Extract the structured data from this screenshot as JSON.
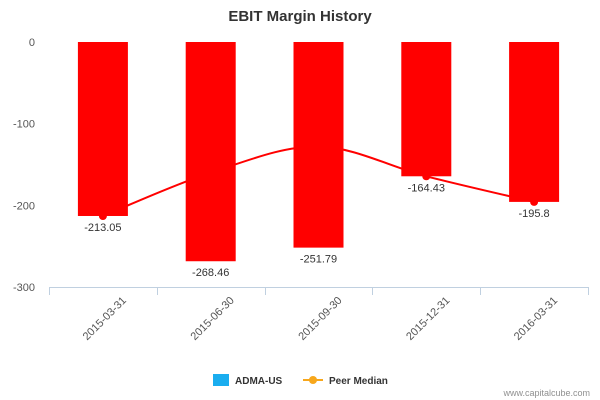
{
  "chart_data": {
    "type": "bar",
    "title": "EBIT Margin History",
    "categories": [
      "2015-03-31",
      "2015-06-30",
      "2015-09-30",
      "2015-12-31",
      "2016-03-31"
    ],
    "series": [
      {
        "name": "ADMA-US",
        "type": "bar",
        "values": [
          -213.05,
          -268.46,
          -251.79,
          -164.43,
          -195.8
        ],
        "color": "#ff0000",
        "legend_color": "#1aadef"
      },
      {
        "name": "Peer Median",
        "type": "line",
        "values": [
          -213.05,
          -160,
          -128,
          -164.43,
          -195.8
        ],
        "color": "#ff0000",
        "legend_color": "#f7a71c"
      }
    ],
    "data_labels": [
      "-213.05",
      "-268.46",
      "-251.79",
      "-164.43",
      "-195.8"
    ],
    "y_ticks": [
      "0",
      "-100",
      "-200",
      "-300"
    ],
    "ylim": [
      -300,
      0
    ],
    "xlabel": "",
    "ylabel": "",
    "grid": false,
    "legend_position": "bottom-center"
  },
  "credit": "www.capitalcube.com"
}
